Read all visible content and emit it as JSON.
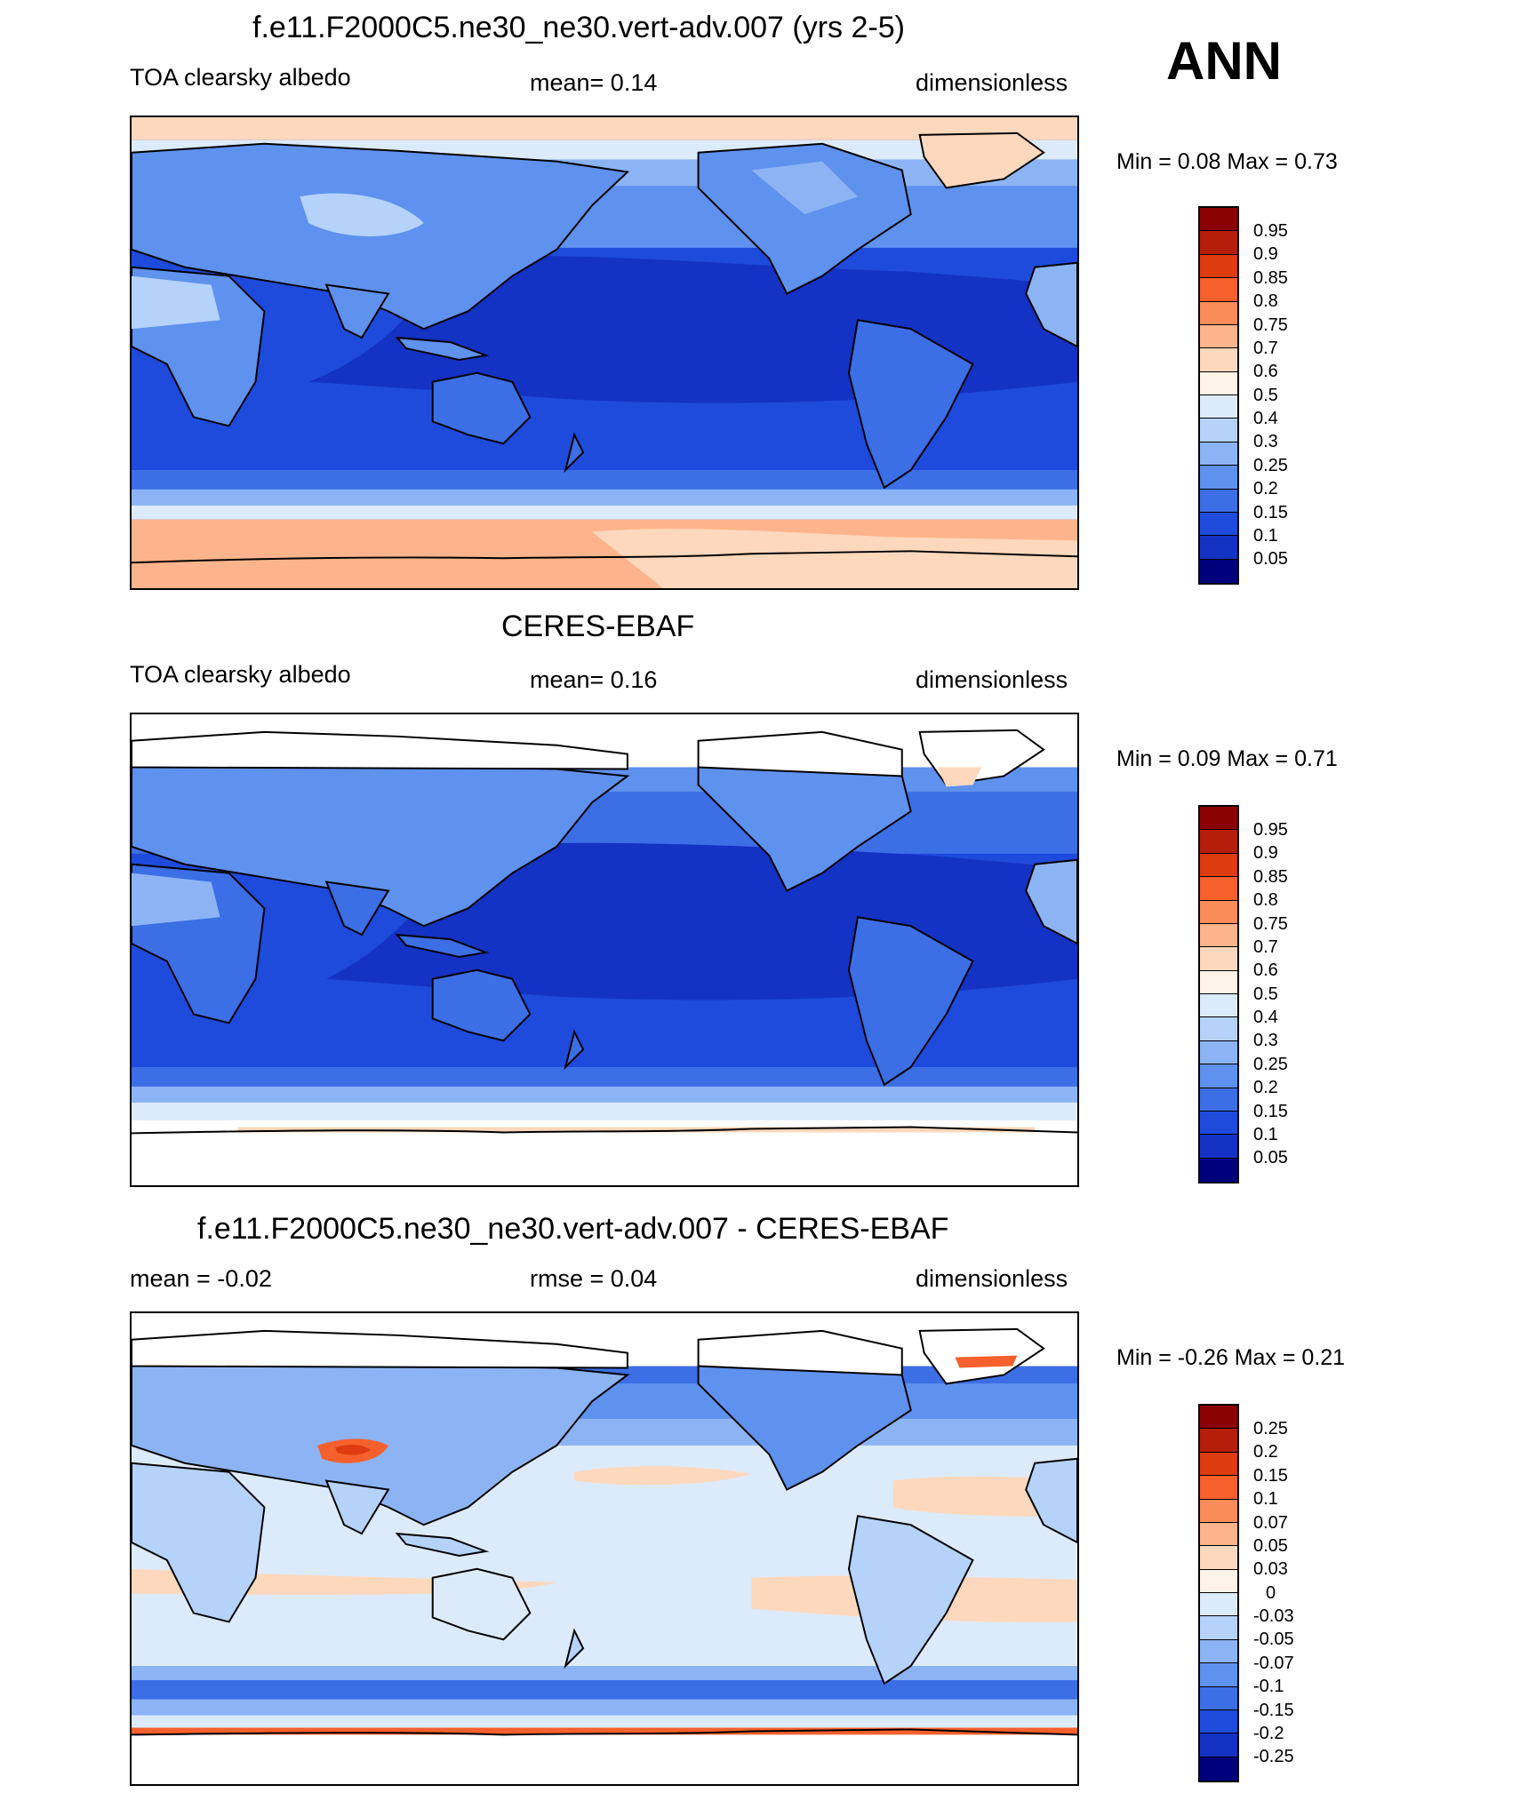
{
  "season": "ANN",
  "panels": [
    {
      "title": "f.e11.F2000C5.ne30_ne30.vert-adv.007 (yrs 2-5)",
      "left_label": "TOA clearsky albedo",
      "center_label": "mean=   0.14",
      "right_label": "dimensionless",
      "minmax": "Min =   0.08 Max =   0.73"
    },
    {
      "title": "CERES-EBAF",
      "left_label": "TOA clearsky albedo",
      "center_label": "mean=   0.16",
      "right_label": "dimensionless",
      "minmax": "Min =   0.09 Max =   0.71"
    },
    {
      "title": "f.e11.F2000C5.ne30_ne30.vert-adv.007 - CERES-EBAF",
      "left_label": "mean =  -0.02",
      "center_label": "rmse =   0.04",
      "right_label": "dimensionless",
      "minmax": "Min =  -0.26 Max =   0.21"
    }
  ],
  "colorbars": {
    "albedo": {
      "labels": [
        "0.95",
        "0.9",
        "0.85",
        "0.8",
        "0.75",
        "0.7",
        "0.6",
        "0.5",
        "0.4",
        "0.3",
        "0.25",
        "0.2",
        "0.15",
        "0.1",
        "0.05"
      ],
      "colors": [
        "#8b0000",
        "#b41e0a",
        "#dc3c0f",
        "#f5602d",
        "#fa8c5a",
        "#fdb48c",
        "#fed8bc",
        "#fff2e6",
        "#dcebfc",
        "#b4d2fa",
        "#8cb4f5",
        "#5f91ee",
        "#3c6ee6",
        "#1e4bdc",
        "#1432c3",
        "#00007d"
      ]
    },
    "diff": {
      "labels": [
        "0.25",
        "0.2",
        "0.15",
        "0.1",
        "0.07",
        "0.05",
        "0.03",
        "0",
        "-0.03",
        "-0.05",
        "-0.07",
        "-0.1",
        "-0.15",
        "-0.2",
        "-0.25"
      ],
      "colors": [
        "#8b0000",
        "#b41e0a",
        "#dc3c0f",
        "#f5602d",
        "#fa8c5a",
        "#fdb48c",
        "#fed8bc",
        "#fff2e6",
        "#dcebfc",
        "#b4d2fa",
        "#8cb4f5",
        "#5f91ee",
        "#3c6ee6",
        "#1e4bdc",
        "#1432c3",
        "#00007d"
      ]
    }
  }
}
